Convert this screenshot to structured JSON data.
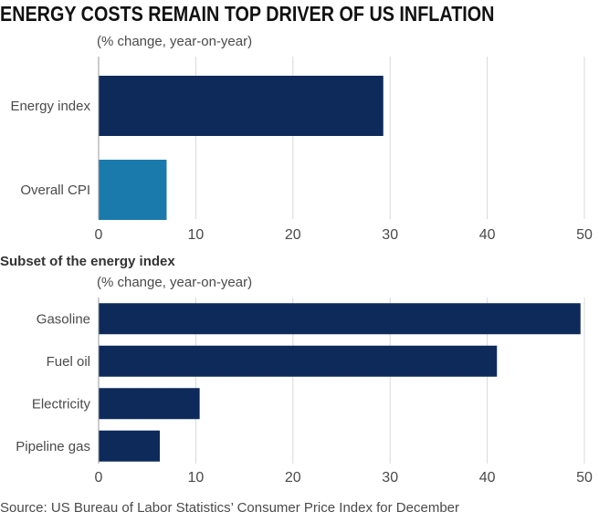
{
  "title": "ENERGY COSTS REMAIN TOP DRIVER OF US INFLATION",
  "subtitle": "Subset of the energy index",
  "source": "Source: US Bureau of Labor Statistics’ Consumer Price Index for December",
  "chart_data": [
    {
      "type": "bar",
      "orientation": "horizontal",
      "unit_label": "(% change, year-on-year)",
      "categories": [
        "Energy index",
        "Overall CPI"
      ],
      "values": [
        29.3,
        7.0
      ],
      "colors": [
        "#0d2a5a",
        "#1a7aac"
      ],
      "xlim": [
        0,
        50
      ],
      "ticks": [
        0,
        10,
        20,
        30,
        40,
        50
      ],
      "grid": true
    },
    {
      "type": "bar",
      "orientation": "horizontal",
      "unit_label": "(% change, year-on-year)",
      "categories": [
        "Gasoline",
        "Fuel oil",
        "Electricity",
        "Pipeline gas"
      ],
      "values": [
        49.6,
        41.0,
        10.4,
        6.3
      ],
      "colors": [
        "#0d2a5a",
        "#0d2a5a",
        "#0d2a5a",
        "#0d2a5a"
      ],
      "xlim": [
        0,
        50
      ],
      "ticks": [
        0,
        10,
        20,
        30,
        40,
        50
      ],
      "grid": true
    }
  ]
}
